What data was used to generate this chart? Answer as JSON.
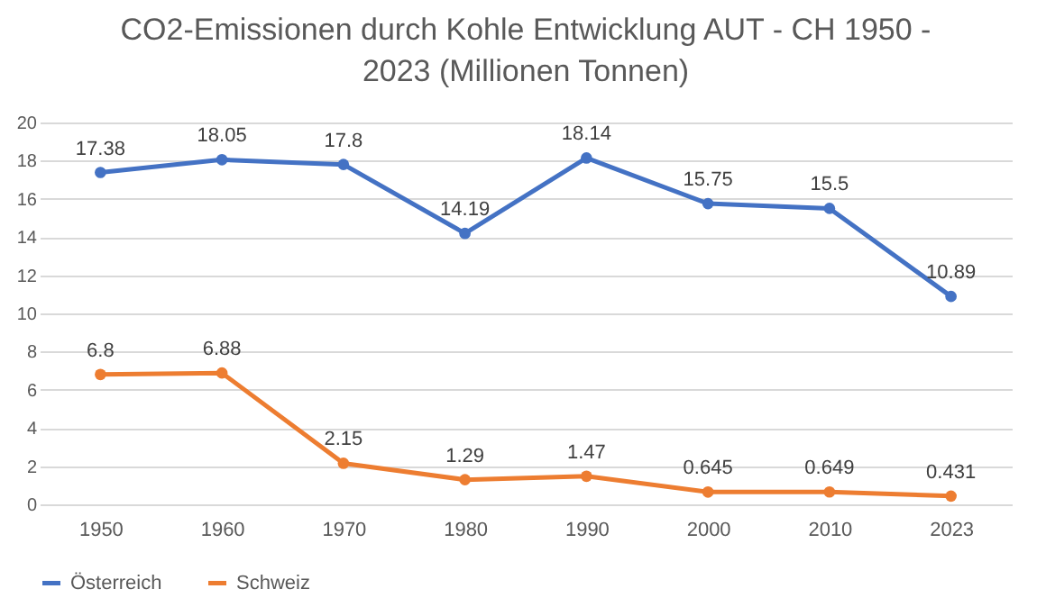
{
  "chart_data": {
    "type": "line",
    "title": "CO2-Emissionen durch Kohle Entwicklung AUT - CH 1950 - 2023 (Millionen Tonnen)",
    "categories": [
      "1950",
      "1960",
      "1970",
      "1980",
      "1990",
      "2000",
      "2010",
      "2023"
    ],
    "series": [
      {
        "name": "Österreich",
        "color": "#4472c4",
        "values": [
          17.38,
          18.05,
          17.8,
          14.19,
          18.14,
          15.75,
          15.5,
          10.89
        ]
      },
      {
        "name": "Schweiz",
        "color": "#ed7d31",
        "values": [
          6.8,
          6.88,
          2.15,
          1.29,
          1.47,
          0.645,
          0.649,
          0.431
        ]
      }
    ],
    "ylim": [
      0,
      20
    ],
    "yticks": [
      0,
      2,
      4,
      6,
      8,
      10,
      12,
      14,
      16,
      18,
      20
    ],
    "grid": "y",
    "legend": "bottom",
    "marker": "circle",
    "line_style": "solid",
    "data_labels": true
  }
}
